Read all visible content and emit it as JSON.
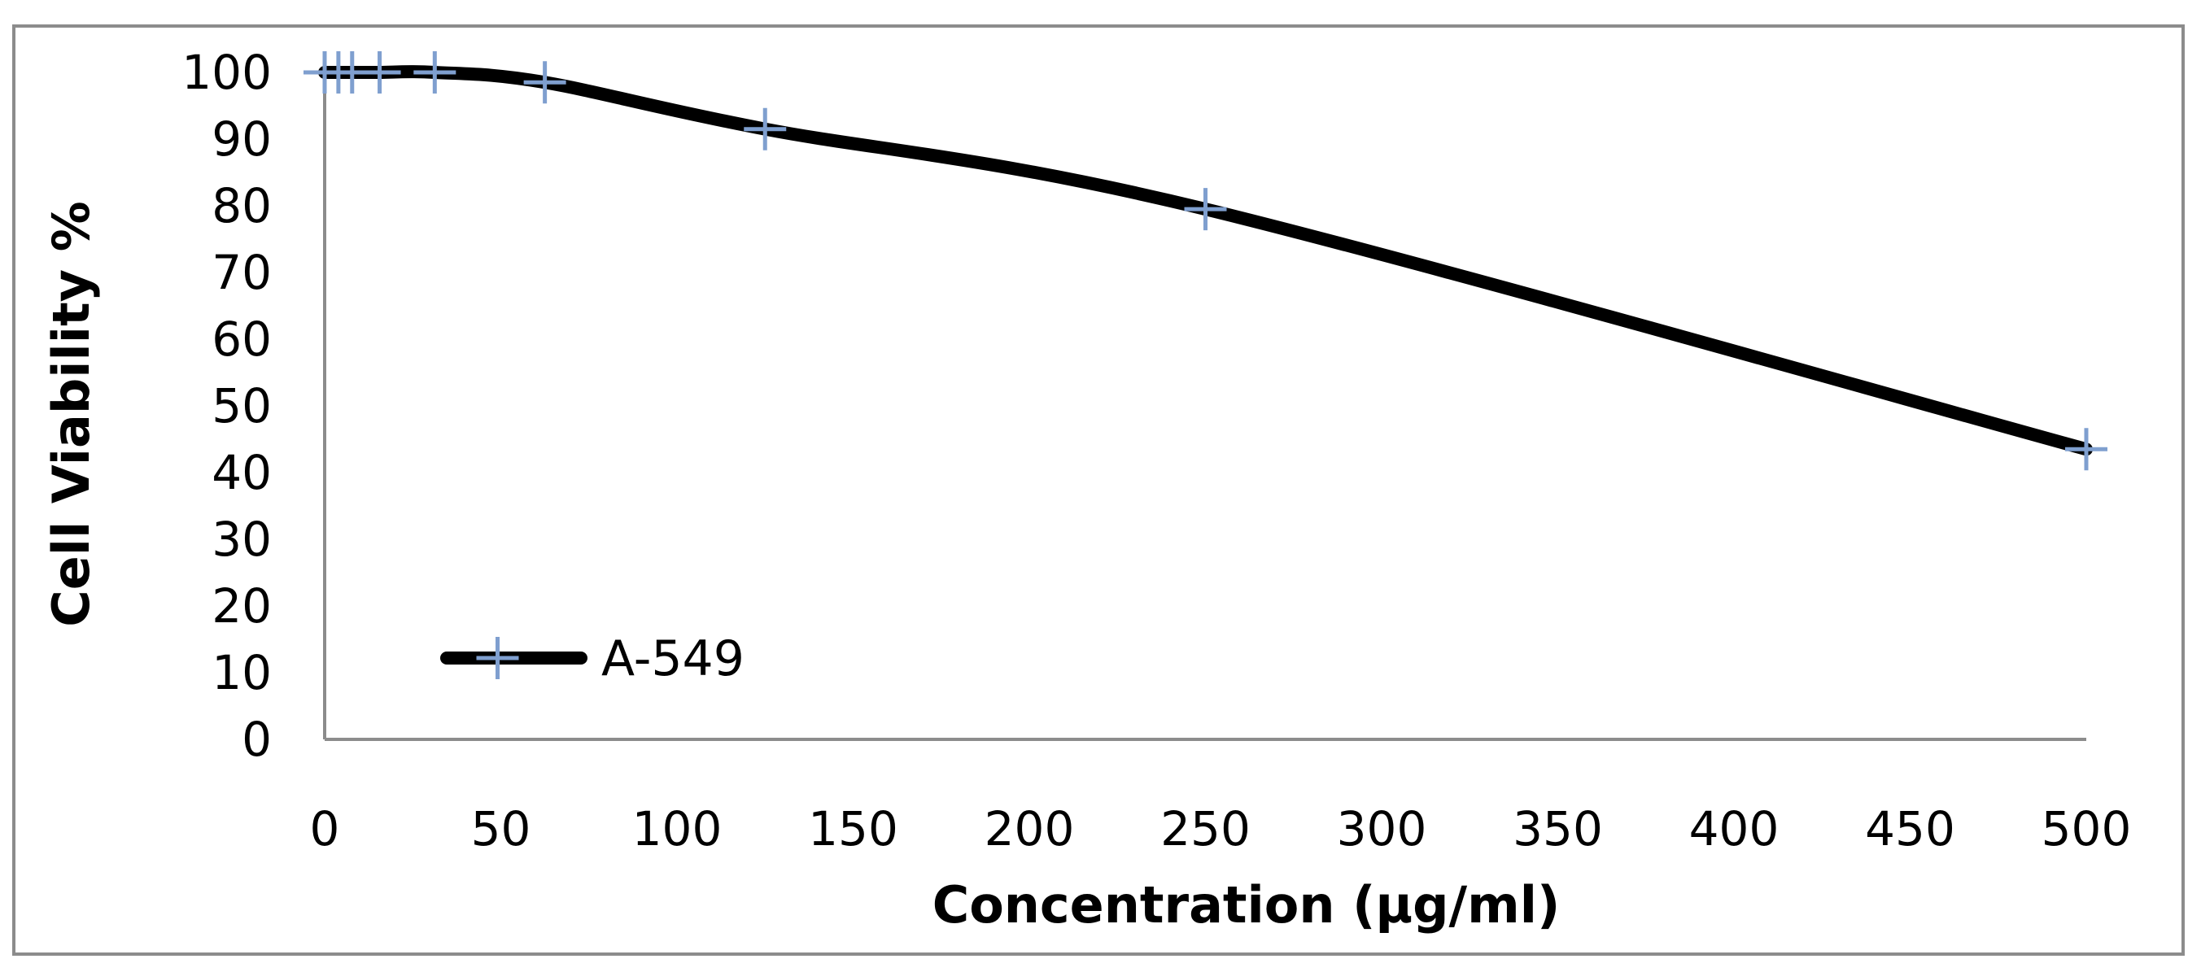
{
  "chart_data": {
    "type": "line",
    "title": "",
    "xlabel": "Concentration (µg/ml)",
    "ylabel": "Cell  Viability  %",
    "xlim": [
      0,
      500
    ],
    "ylim": [
      0,
      100
    ],
    "x_ticks": [
      0,
      50,
      100,
      150,
      200,
      250,
      300,
      350,
      400,
      450,
      500
    ],
    "y_ticks": [
      0,
      10,
      20,
      30,
      40,
      50,
      60,
      70,
      80,
      90,
      100
    ],
    "grid": false,
    "legend_position": "bottom-left",
    "series": [
      {
        "name": "A-549",
        "line_color": "#000000",
        "marker": "plus",
        "marker_color": "#7f9fcf",
        "x": [
          0,
          3.9,
          7.8,
          15.6,
          31.25,
          62.5,
          125,
          250,
          500
        ],
        "y": [
          100,
          100,
          100,
          100,
          100,
          98.5,
          91.5,
          79.5,
          43.5
        ]
      }
    ]
  }
}
